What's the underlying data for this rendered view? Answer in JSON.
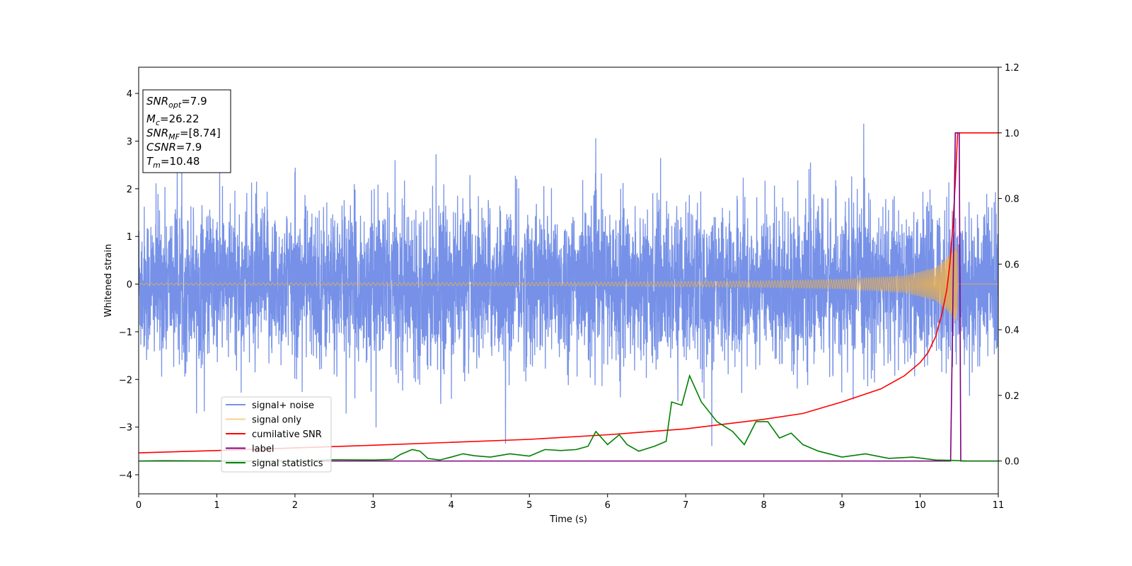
{
  "chart_data": {
    "type": "line",
    "xlabel": "Time (s)",
    "ylabel": "Whitened strain",
    "xlim": [
      0,
      11
    ],
    "ylim": [
      -4.4,
      4.55
    ],
    "y2lim": [
      -0.1,
      1.2
    ],
    "x_ticks": [
      0,
      1,
      2,
      3,
      4,
      5,
      6,
      7,
      8,
      9,
      10,
      11
    ],
    "y_ticks": [
      -4,
      -3,
      -2,
      -1,
      0,
      1,
      2,
      3,
      4
    ],
    "y2_ticks": [
      0.0,
      0.2,
      0.4,
      0.6,
      0.8,
      1.0,
      1.2
    ],
    "y2_tick_labels": [
      "0.0",
      "0.2",
      "0.4",
      "0.6",
      "0.8",
      "1.0",
      "1.2"
    ],
    "legend_position": "lower-left",
    "annotation": {
      "lines": [
        {
          "main": "SNR",
          "sub": "opt",
          "rest": "=7.9"
        },
        {
          "main": "M",
          "sub": "c",
          "rest": "=26.22"
        },
        {
          "main": "SNR",
          "sub": "MF",
          "rest": "=[8.74]"
        },
        {
          "main": "CSNR",
          "sub": "",
          "rest": "=7.9"
        },
        {
          "main": "T",
          "sub": "m",
          "rest": "=10.48"
        }
      ]
    },
    "series": [
      {
        "name": "signal+ noise",
        "color": "#6f8be6",
        "axis": "left",
        "kind": "noise",
        "sigma": 0.8,
        "envelope": [
          [
            0,
            1.3
          ],
          [
            11,
            1.3
          ]
        ]
      },
      {
        "name": "signal only",
        "color": "#f5b342",
        "axis": "left",
        "kind": "chirp",
        "amplitude_env": [
          [
            0,
            0.02
          ],
          [
            6,
            0.04
          ],
          [
            8,
            0.07
          ],
          [
            9,
            0.1
          ],
          [
            9.8,
            0.18
          ],
          [
            10.2,
            0.35
          ],
          [
            10.4,
            0.65
          ],
          [
            10.47,
            0.9
          ],
          [
            10.48,
            0.0
          ],
          [
            11,
            0.0
          ]
        ]
      },
      {
        "name": "cumilative SNR",
        "color": "#ff0000",
        "axis": "right",
        "points": [
          [
            0,
            0.025
          ],
          [
            1,
            0.032
          ],
          [
            2,
            0.04
          ],
          [
            3,
            0.048
          ],
          [
            4,
            0.057
          ],
          [
            5,
            0.066
          ],
          [
            6,
            0.08
          ],
          [
            7,
            0.098
          ],
          [
            8,
            0.127
          ],
          [
            8.5,
            0.145
          ],
          [
            9,
            0.18
          ],
          [
            9.5,
            0.22
          ],
          [
            9.8,
            0.26
          ],
          [
            10,
            0.3
          ],
          [
            10.1,
            0.33
          ],
          [
            10.2,
            0.38
          ],
          [
            10.28,
            0.45
          ],
          [
            10.34,
            0.52
          ],
          [
            10.38,
            0.6
          ],
          [
            10.42,
            0.72
          ],
          [
            10.45,
            0.85
          ],
          [
            10.48,
            1.0
          ],
          [
            11,
            1.0
          ]
        ]
      },
      {
        "name": "label",
        "color": "#800080",
        "axis": "right",
        "points": [
          [
            0,
            0.0
          ],
          [
            10.39,
            0.0
          ],
          [
            10.45,
            1.0
          ],
          [
            10.5,
            1.0
          ],
          [
            10.52,
            0.0
          ],
          [
            11,
            0.0
          ]
        ]
      },
      {
        "name": "signal statistics",
        "color": "#008000",
        "axis": "right",
        "points": [
          [
            0,
            0.0
          ],
          [
            0.3,
            0.001
          ],
          [
            1,
            0.0
          ],
          [
            2,
            0.0
          ],
          [
            2.5,
            0.004
          ],
          [
            3.0,
            0.003
          ],
          [
            3.25,
            0.005
          ],
          [
            3.35,
            0.02
          ],
          [
            3.5,
            0.035
          ],
          [
            3.6,
            0.03
          ],
          [
            3.7,
            0.008
          ],
          [
            3.85,
            0.003
          ],
          [
            4.0,
            0.012
          ],
          [
            4.15,
            0.022
          ],
          [
            4.3,
            0.016
          ],
          [
            4.5,
            0.012
          ],
          [
            4.75,
            0.022
          ],
          [
            5.0,
            0.015
          ],
          [
            5.2,
            0.035
          ],
          [
            5.4,
            0.032
          ],
          [
            5.6,
            0.035
          ],
          [
            5.75,
            0.045
          ],
          [
            5.85,
            0.09
          ],
          [
            6.0,
            0.05
          ],
          [
            6.15,
            0.08
          ],
          [
            6.25,
            0.05
          ],
          [
            6.4,
            0.03
          ],
          [
            6.6,
            0.045
          ],
          [
            6.75,
            0.06
          ],
          [
            6.82,
            0.18
          ],
          [
            6.95,
            0.17
          ],
          [
            7.05,
            0.26
          ],
          [
            7.2,
            0.18
          ],
          [
            7.4,
            0.12
          ],
          [
            7.6,
            0.09
          ],
          [
            7.75,
            0.05
          ],
          [
            7.9,
            0.12
          ],
          [
            8.05,
            0.12
          ],
          [
            8.2,
            0.07
          ],
          [
            8.35,
            0.085
          ],
          [
            8.5,
            0.05
          ],
          [
            8.7,
            0.03
          ],
          [
            9.0,
            0.012
          ],
          [
            9.3,
            0.022
          ],
          [
            9.6,
            0.008
          ],
          [
            9.9,
            0.012
          ],
          [
            10.2,
            0.003
          ],
          [
            10.4,
            0.002
          ],
          [
            10.6,
            0.0
          ],
          [
            11,
            0.0
          ]
        ]
      }
    ]
  }
}
